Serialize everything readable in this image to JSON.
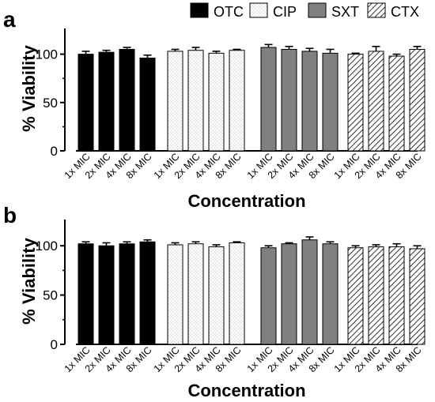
{
  "legend": {
    "placement": "top-right",
    "entries": [
      {
        "label": "OTC",
        "fill": "solid-black"
      },
      {
        "label": "CIP",
        "fill": "dotted-white"
      },
      {
        "label": "SXT",
        "fill": "solid-gray"
      },
      {
        "label": "CTX",
        "fill": "hatched"
      }
    ]
  },
  "colors": {
    "otc": "#000000",
    "cip": "#ffffff",
    "sxt": "#808080",
    "ctx_hatch": "#000000",
    "axis": "#000000"
  },
  "chart_data": [
    {
      "type": "bar",
      "panel_label": "a",
      "xlabel": "Concentration",
      "ylabel": "% Viability",
      "ylim": [
        0,
        125
      ],
      "yticks": [
        0,
        50,
        100
      ],
      "grid": false,
      "categories": [
        "1x MIC",
        "2x MIC",
        "4x MIC",
        "8x MIC"
      ],
      "series": [
        {
          "name": "OTC",
          "values": [
            100,
            102,
            105,
            96
          ],
          "errors": [
            3,
            2,
            2,
            3
          ]
        },
        {
          "name": "CIP",
          "values": [
            103,
            104,
            101,
            104
          ],
          "errors": [
            2,
            3,
            2,
            1
          ]
        },
        {
          "name": "SXT",
          "values": [
            107,
            105,
            103,
            101
          ],
          "errors": [
            3,
            3,
            3,
            4
          ]
        },
        {
          "name": "CTX",
          "values": [
            100,
            103,
            98,
            105
          ],
          "errors": [
            1,
            5,
            2,
            3
          ]
        }
      ]
    },
    {
      "type": "bar",
      "panel_label": "b",
      "xlabel": "Concentration",
      "ylabel": "% Viability",
      "ylim": [
        0,
        125
      ],
      "yticks": [
        0,
        50,
        100
      ],
      "grid": false,
      "categories": [
        "1x MIC",
        "2x MIC",
        "4x MIC",
        "8x MIC"
      ],
      "series": [
        {
          "name": "OTC",
          "values": [
            102,
            100,
            102,
            104
          ],
          "errors": [
            2,
            3,
            2,
            2
          ]
        },
        {
          "name": "CIP",
          "values": [
            101,
            102,
            99,
            103
          ],
          "errors": [
            2,
            2,
            2,
            1
          ]
        },
        {
          "name": "SXT",
          "values": [
            98,
            102,
            106,
            102
          ],
          "errors": [
            2,
            1,
            3,
            2
          ]
        },
        {
          "name": "CTX",
          "values": [
            98,
            99,
            99,
            97
          ],
          "errors": [
            2,
            2,
            3,
            3
          ]
        }
      ]
    }
  ]
}
